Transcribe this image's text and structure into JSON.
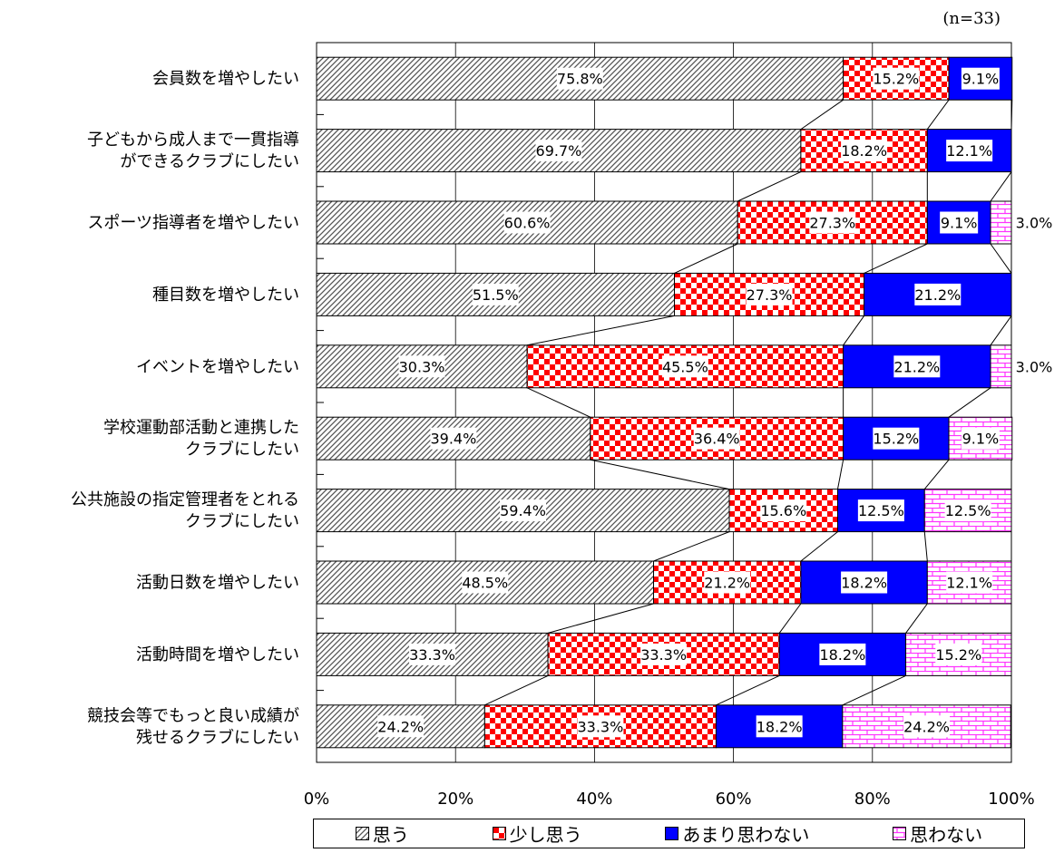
{
  "note": "(n=33)",
  "colors": {
    "omou": "#cccccc",
    "sukoshi": "#ff0000",
    "amari": "#0000ff",
    "omowanai": "#ff66ff"
  },
  "chart_data": {
    "type": "bar",
    "orientation": "horizontal",
    "stacked": "percent",
    "categories": [
      "会員数を増やしたい",
      "子どもから成人まで一貫指導\nができるクラブにしたい",
      "スポーツ指導者を増やしたい",
      "種目数を増やしたい",
      "イベントを増やしたい",
      "学校運動部活動と連携した\nクラブにしたい",
      "公共施設の指定管理者をとれる\nクラブにしたい",
      "活動日数を増やしたい",
      "活動時間を増やしたい",
      "競技会等でもっと良い成績が\n残せるクラブにしたい"
    ],
    "series": [
      {
        "name": "思う",
        "values": [
          75.8,
          69.7,
          60.6,
          51.5,
          30.3,
          39.4,
          59.4,
          48.5,
          33.3,
          24.2
        ]
      },
      {
        "name": "少し思う",
        "values": [
          15.2,
          18.2,
          27.3,
          27.3,
          45.5,
          36.4,
          15.6,
          21.2,
          33.3,
          33.3
        ]
      },
      {
        "name": "あまり思わない",
        "values": [
          9.1,
          12.1,
          9.1,
          21.2,
          21.2,
          15.2,
          12.5,
          18.2,
          18.2,
          18.2
        ]
      },
      {
        "name": "思わない",
        "values": [
          0,
          0,
          3.0,
          0,
          3.0,
          9.1,
          12.5,
          12.1,
          15.2,
          24.2
        ]
      }
    ],
    "data_labels": [
      [
        "75.8%",
        "15.2%",
        "9.1%",
        ""
      ],
      [
        "69.7%",
        "18.2%",
        "12.1%",
        ""
      ],
      [
        "60.6%",
        "27.3%",
        "9.1%",
        "3.0%"
      ],
      [
        "51.5%",
        "27.3%",
        "21.2%",
        ""
      ],
      [
        "30.3%",
        "45.5%",
        "21.2%",
        "3.0%"
      ],
      [
        "39.4%",
        "36.4%",
        "15.2%",
        "9.1%"
      ],
      [
        "59.4%",
        "15.6%",
        "12.5%",
        "12.5%"
      ],
      [
        "48.5%",
        "21.2%",
        "18.2%",
        "12.1%"
      ],
      [
        "33.3%",
        "33.3%",
        "18.2%",
        "15.2%"
      ],
      [
        "24.2%",
        "33.3%",
        "18.2%",
        "24.2%"
      ]
    ],
    "x_ticks": [
      "0%",
      "20%",
      "40%",
      "60%",
      "80%",
      "100%"
    ],
    "xlim": [
      0,
      100
    ],
    "series_lines": true,
    "grid": true,
    "legend_position": "bottom"
  }
}
